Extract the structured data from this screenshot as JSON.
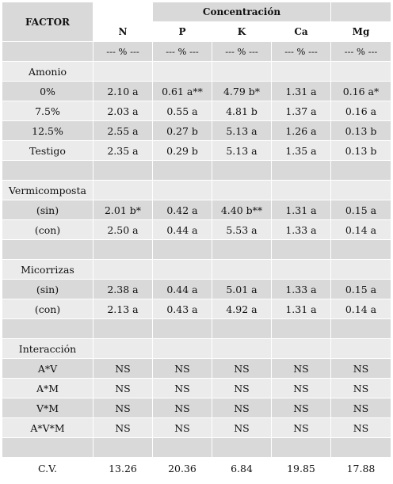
{
  "header": {
    "factor": "FACTOR",
    "group": "Concentración",
    "columns": [
      "N",
      "P",
      "K",
      "Ca",
      "Mg"
    ],
    "units": [
      "--- % ---",
      "--- % ---",
      "--- % ---",
      "--- % ---",
      "--- % ---"
    ]
  },
  "sections": {
    "amonio": {
      "label": "Amonio",
      "rows": [
        {
          "factor": "0%",
          "values": [
            "2.10 a",
            "0.61 a**",
            "4.79 b*",
            "1.31 a",
            "0.16 a*"
          ]
        },
        {
          "factor": "7.5%",
          "values": [
            "2.03 a",
            "0.55 a",
            "4.81 b",
            "1.37 a",
            "0.16 a"
          ]
        },
        {
          "factor": "12.5%",
          "values": [
            "2.55 a",
            "0.27 b",
            "5.13 a",
            "1.26 a",
            "0.13 b"
          ]
        },
        {
          "factor": "Testigo",
          "values": [
            "2.35 a",
            "0.29 b",
            "5.13 a",
            "1.35 a",
            "0.13 b"
          ]
        }
      ]
    },
    "vermicomposta": {
      "label": "Vermicomposta",
      "rows": [
        {
          "factor": "(sin)",
          "values": [
            "2.01 b*",
            "0.42 a",
            "4.40 b**",
            "1.31 a",
            "0.15 a"
          ]
        },
        {
          "factor": "(con)",
          "values": [
            "2.50 a",
            "0.44 a",
            "5.53 a",
            "1.33 a",
            "0.14 a"
          ]
        }
      ]
    },
    "micorrizas": {
      "label": "Micorrizas",
      "rows": [
        {
          "factor": "(sin)",
          "values": [
            "2.38 a",
            "0.44 a",
            "5.01 a",
            "1.33 a",
            "0.15 a"
          ]
        },
        {
          "factor": "(con)",
          "values": [
            "2.13 a",
            "0.43 a",
            "4.92 a",
            "1.31 a",
            "0.14 a"
          ]
        }
      ]
    },
    "interaccion": {
      "label": "Interacción",
      "rows": [
        {
          "factor": "A*V",
          "values": [
            "NS",
            "NS",
            "NS",
            "NS",
            "NS"
          ]
        },
        {
          "factor": "A*M",
          "values": [
            "NS",
            "NS",
            "NS",
            "NS",
            "NS"
          ]
        },
        {
          "factor": "V*M",
          "values": [
            "NS",
            "NS",
            "NS",
            "NS",
            "NS"
          ]
        },
        {
          "factor": "A*V*M",
          "values": [
            "NS",
            "NS",
            "NS",
            "NS",
            "NS"
          ]
        }
      ]
    }
  },
  "cv": {
    "factor": "C.V.",
    "values": [
      "13.26",
      "20.36",
      "6.84",
      "19.85",
      "17.88"
    ]
  }
}
